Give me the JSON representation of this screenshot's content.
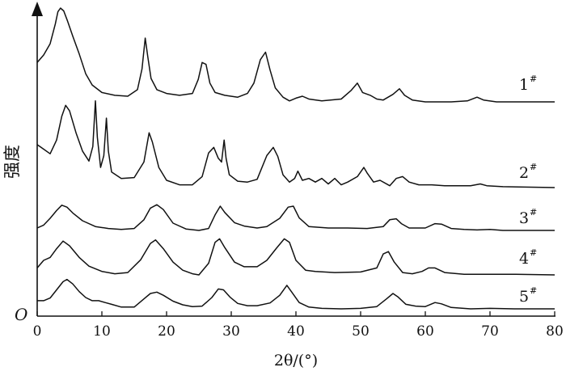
{
  "chart_data": {
    "type": "line",
    "title": "",
    "xlabel": "2θ/(°)",
    "ylabel": "强度",
    "origin_label": "O",
    "xlim": [
      0,
      80
    ],
    "x_ticks": [
      "0",
      "10",
      "20",
      "30",
      "40",
      "50",
      "60",
      "70",
      "80"
    ],
    "y_ticks": "none",
    "grid": false,
    "legend": "labels at right end of each curve",
    "line_color": "#111111",
    "series": [
      {
        "name": "1",
        "sup": "#",
        "baseline": 0,
        "points": [
          [
            0,
            0.42
          ],
          [
            1,
            0.5
          ],
          [
            2,
            0.62
          ],
          [
            2.8,
            0.83
          ],
          [
            3.2,
            0.96
          ],
          [
            3.6,
            1.0
          ],
          [
            4.1,
            0.97
          ],
          [
            4.7,
            0.86
          ],
          [
            5.5,
            0.7
          ],
          [
            6.5,
            0.51
          ],
          [
            7.5,
            0.3
          ],
          [
            8.5,
            0.18
          ],
          [
            10,
            0.1
          ],
          [
            12,
            0.07
          ],
          [
            14,
            0.06
          ],
          [
            15.5,
            0.13
          ],
          [
            16.2,
            0.35
          ],
          [
            16.7,
            0.68
          ],
          [
            17.1,
            0.48
          ],
          [
            17.6,
            0.25
          ],
          [
            18.5,
            0.13
          ],
          [
            20,
            0.09
          ],
          [
            22,
            0.07
          ],
          [
            24,
            0.09
          ],
          [
            24.9,
            0.24
          ],
          [
            25.5,
            0.42
          ],
          [
            26.1,
            0.4
          ],
          [
            26.7,
            0.2
          ],
          [
            27.5,
            0.1
          ],
          [
            29,
            0.07
          ],
          [
            31,
            0.05
          ],
          [
            32.5,
            0.09
          ],
          [
            33.5,
            0.2
          ],
          [
            34.5,
            0.45
          ],
          [
            35.3,
            0.53
          ],
          [
            36,
            0.34
          ],
          [
            36.8,
            0.15
          ],
          [
            38,
            0.05
          ],
          [
            39,
            0.01
          ],
          [
            40,
            0.04
          ],
          [
            41,
            0.06
          ],
          [
            42,
            0.03
          ],
          [
            44,
            0.01
          ],
          [
            47,
            0.03
          ],
          [
            48.5,
            0.12
          ],
          [
            49.5,
            0.2
          ],
          [
            50.3,
            0.1
          ],
          [
            51.5,
            0.07
          ],
          [
            52.5,
            0.03
          ],
          [
            53.5,
            0.02
          ],
          [
            55,
            0.08
          ],
          [
            56,
            0.14
          ],
          [
            56.8,
            0.07
          ],
          [
            58,
            0.02
          ],
          [
            60,
            0
          ],
          [
            64,
            0
          ],
          [
            66.5,
            0.01
          ],
          [
            68,
            0.05
          ],
          [
            69,
            0.02
          ],
          [
            71,
            0
          ],
          [
            76,
            0
          ],
          [
            80,
            0
          ]
        ]
      },
      {
        "name": "2",
        "sup": "#",
        "baseline": 0,
        "points": [
          [
            0,
            0.47
          ],
          [
            1,
            0.42
          ],
          [
            2,
            0.37
          ],
          [
            3,
            0.52
          ],
          [
            3.8,
            0.78
          ],
          [
            4.4,
            0.9
          ],
          [
            5,
            0.84
          ],
          [
            6,
            0.6
          ],
          [
            7,
            0.4
          ],
          [
            8,
            0.29
          ],
          [
            8.6,
            0.45
          ],
          [
            9,
            0.95
          ],
          [
            9.3,
            0.55
          ],
          [
            9.8,
            0.22
          ],
          [
            10.3,
            0.35
          ],
          [
            10.7,
            0.76
          ],
          [
            11,
            0.4
          ],
          [
            11.5,
            0.17
          ],
          [
            13,
            0.1
          ],
          [
            15,
            0.11
          ],
          [
            16.5,
            0.28
          ],
          [
            17.3,
            0.6
          ],
          [
            17.8,
            0.5
          ],
          [
            18.8,
            0.22
          ],
          [
            20,
            0.08
          ],
          [
            22,
            0.03
          ],
          [
            24,
            0.03
          ],
          [
            25.5,
            0.12
          ],
          [
            26.5,
            0.38
          ],
          [
            27.3,
            0.44
          ],
          [
            28,
            0.32
          ],
          [
            28.5,
            0.28
          ],
          [
            28.9,
            0.52
          ],
          [
            29.2,
            0.32
          ],
          [
            29.7,
            0.14
          ],
          [
            31,
            0.07
          ],
          [
            32.5,
            0.06
          ],
          [
            34,
            0.09
          ],
          [
            35.5,
            0.35
          ],
          [
            36.5,
            0.44
          ],
          [
            37.2,
            0.34
          ],
          [
            38,
            0.14
          ],
          [
            39,
            0.06
          ],
          [
            39.8,
            0.1
          ],
          [
            40.3,
            0.18
          ],
          [
            41,
            0.08
          ],
          [
            42,
            0.1
          ],
          [
            43,
            0.06
          ],
          [
            44,
            0.1
          ],
          [
            45,
            0.04
          ],
          [
            46,
            0.1
          ],
          [
            47,
            0.03
          ],
          [
            48,
            0.06
          ],
          [
            49.5,
            0.12
          ],
          [
            50.5,
            0.22
          ],
          [
            51,
            0.16
          ],
          [
            52,
            0.06
          ],
          [
            53,
            0.08
          ],
          [
            54.5,
            0.02
          ],
          [
            55.5,
            0.1
          ],
          [
            56.5,
            0.12
          ],
          [
            57.5,
            0.06
          ],
          [
            59,
            0.03
          ],
          [
            61,
            0.03
          ],
          [
            63,
            0.02
          ],
          [
            65,
            0.02
          ],
          [
            67,
            0.02
          ],
          [
            68.5,
            0.04
          ],
          [
            69.5,
            0.02
          ],
          [
            72,
            0.01
          ],
          [
            80,
            0
          ]
        ]
      },
      {
        "name": "3",
        "sup": "#",
        "baseline": 0,
        "points": [
          [
            0,
            0.05
          ],
          [
            1,
            0.11
          ],
          [
            2,
            0.25
          ],
          [
            3,
            0.41
          ],
          [
            3.8,
            0.52
          ],
          [
            4.6,
            0.48
          ],
          [
            5.5,
            0.36
          ],
          [
            7,
            0.2
          ],
          [
            9,
            0.08
          ],
          [
            11,
            0.04
          ],
          [
            13,
            0.02
          ],
          [
            15,
            0.04
          ],
          [
            16.5,
            0.22
          ],
          [
            17.5,
            0.46
          ],
          [
            18.5,
            0.53
          ],
          [
            19.5,
            0.43
          ],
          [
            21,
            0.15
          ],
          [
            23,
            0.03
          ],
          [
            25,
            0
          ],
          [
            26.5,
            0.04
          ],
          [
            27.5,
            0.32
          ],
          [
            28.3,
            0.5
          ],
          [
            29,
            0.37
          ],
          [
            30.5,
            0.16
          ],
          [
            32,
            0.09
          ],
          [
            34,
            0.05
          ],
          [
            35.5,
            0.08
          ],
          [
            37.5,
            0.25
          ],
          [
            38.8,
            0.48
          ],
          [
            39.6,
            0.5
          ],
          [
            40.5,
            0.26
          ],
          [
            42,
            0.08
          ],
          [
            45,
            0.05
          ],
          [
            48,
            0.05
          ],
          [
            51,
            0.04
          ],
          [
            53.5,
            0.08
          ],
          [
            54.5,
            0.22
          ],
          [
            55.5,
            0.24
          ],
          [
            56.3,
            0.14
          ],
          [
            57.5,
            0.05
          ],
          [
            60,
            0.05
          ],
          [
            61.5,
            0.14
          ],
          [
            62.5,
            0.13
          ],
          [
            64,
            0.04
          ],
          [
            66,
            0.02
          ],
          [
            68,
            0.01
          ],
          [
            70,
            0.02
          ],
          [
            72,
            0
          ],
          [
            75,
            0
          ],
          [
            80,
            0
          ]
        ]
      },
      {
        "name": "4",
        "sup": "#",
        "baseline": 0,
        "points": [
          [
            0,
            0.12
          ],
          [
            1,
            0.25
          ],
          [
            2,
            0.3
          ],
          [
            3,
            0.45
          ],
          [
            4,
            0.58
          ],
          [
            5,
            0.5
          ],
          [
            6.5,
            0.3
          ],
          [
            8,
            0.15
          ],
          [
            10,
            0.06
          ],
          [
            12,
            0.02
          ],
          [
            14,
            0.04
          ],
          [
            16,
            0.26
          ],
          [
            17.5,
            0.54
          ],
          [
            18.3,
            0.6
          ],
          [
            19.5,
            0.45
          ],
          [
            21,
            0.22
          ],
          [
            22.5,
            0.08
          ],
          [
            24,
            0.02
          ],
          [
            25,
            0
          ],
          [
            26.5,
            0.2
          ],
          [
            27.5,
            0.56
          ],
          [
            28.2,
            0.62
          ],
          [
            29,
            0.47
          ],
          [
            30.5,
            0.22
          ],
          [
            32,
            0.14
          ],
          [
            34,
            0.14
          ],
          [
            35.5,
            0.25
          ],
          [
            37,
            0.46
          ],
          [
            38.2,
            0.62
          ],
          [
            39,
            0.56
          ],
          [
            40,
            0.25
          ],
          [
            41.5,
            0.08
          ],
          [
            43,
            0.06
          ],
          [
            46,
            0.04
          ],
          [
            50,
            0.05
          ],
          [
            52.5,
            0.12
          ],
          [
            53.5,
            0.36
          ],
          [
            54.3,
            0.4
          ],
          [
            55.2,
            0.22
          ],
          [
            56.5,
            0.04
          ],
          [
            58,
            0.02
          ],
          [
            59.5,
            0.06
          ],
          [
            60.5,
            0.12
          ],
          [
            61.5,
            0.12
          ],
          [
            63,
            0.04
          ],
          [
            66,
            0.01
          ],
          [
            70,
            0.01
          ],
          [
            74,
            0.01
          ],
          [
            80,
            0
          ]
        ]
      },
      {
        "name": "5",
        "sup": "#",
        "baseline": 0,
        "points": [
          [
            0,
            0.18
          ],
          [
            1,
            0.18
          ],
          [
            2,
            0.24
          ],
          [
            3,
            0.42
          ],
          [
            4,
            0.6
          ],
          [
            4.6,
            0.65
          ],
          [
            5.5,
            0.55
          ],
          [
            6.5,
            0.38
          ],
          [
            7.5,
            0.25
          ],
          [
            8.5,
            0.18
          ],
          [
            9.5,
            0.18
          ],
          [
            10.5,
            0.14
          ],
          [
            11.5,
            0.1
          ],
          [
            13,
            0.04
          ],
          [
            15,
            0.04
          ],
          [
            16.5,
            0.22
          ],
          [
            17.5,
            0.34
          ],
          [
            18.5,
            0.37
          ],
          [
            19.5,
            0.3
          ],
          [
            21,
            0.17
          ],
          [
            22.5,
            0.09
          ],
          [
            24,
            0.05
          ],
          [
            25.5,
            0.06
          ],
          [
            27,
            0.25
          ],
          [
            28,
            0.44
          ],
          [
            28.8,
            0.42
          ],
          [
            29.8,
            0.26
          ],
          [
            31,
            0.12
          ],
          [
            32.5,
            0.07
          ],
          [
            34,
            0.07
          ],
          [
            36,
            0.13
          ],
          [
            37.5,
            0.3
          ],
          [
            38.6,
            0.52
          ],
          [
            39.3,
            0.38
          ],
          [
            40.5,
            0.14
          ],
          [
            42,
            0.04
          ],
          [
            44,
            0.01
          ],
          [
            47,
            0
          ],
          [
            50,
            0.01
          ],
          [
            52.5,
            0.05
          ],
          [
            54,
            0.22
          ],
          [
            55,
            0.34
          ],
          [
            55.8,
            0.26
          ],
          [
            57,
            0.1
          ],
          [
            58.5,
            0.06
          ],
          [
            60,
            0.05
          ],
          [
            61.5,
            0.14
          ],
          [
            62.5,
            0.11
          ],
          [
            64,
            0.03
          ],
          [
            67,
            0
          ],
          [
            70,
            0.01
          ],
          [
            74,
            0
          ],
          [
            80,
            0
          ]
        ]
      }
    ]
  }
}
